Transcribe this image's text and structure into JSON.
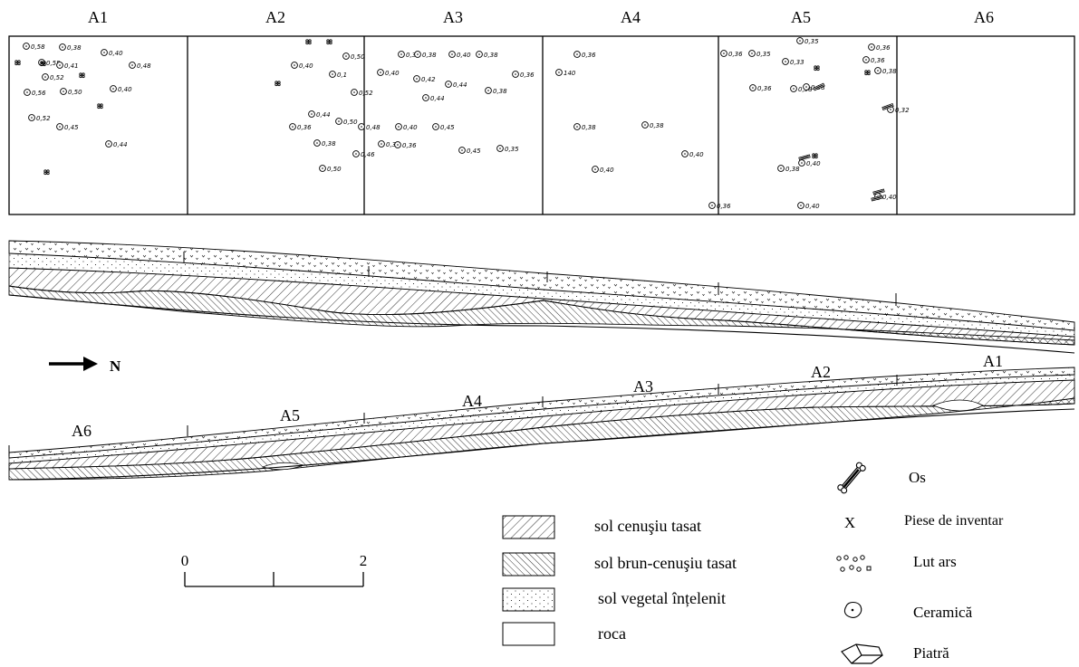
{
  "plan": {
    "squares": [
      "A1",
      "A2",
      "A3",
      "A4",
      "A5",
      "A6"
    ],
    "depths": {
      "A1": [
        "0,58",
        "0,38",
        "0,40",
        "0,55",
        "0,41",
        "0,48",
        "0,52",
        "0,40",
        "0,56",
        "0,50",
        "0,52",
        "0,45",
        "0,44"
      ],
      "A2": [
        "0,40",
        "0,1",
        "0,50",
        "0,52",
        "0,44",
        "0,36",
        "0,50",
        "0,48",
        "0,38",
        "0,46",
        "0,50"
      ],
      "A3": [
        "0,38",
        "0,38",
        "0,40",
        "0,38",
        "0,40",
        "0,42",
        "0,44",
        "0,36",
        "0,44",
        "0,38",
        "0,40",
        "0,45",
        "0,38",
        "0,36",
        "0,45",
        "0,35"
      ],
      "A4": [
        "0,36",
        "140",
        "0,38",
        "0,38",
        "0,40",
        "0,40",
        "0,36"
      ],
      "A5": [
        "0,35",
        "0,36",
        "0,36",
        "0,35",
        "0,33",
        "0,36",
        "0,36",
        "0,38",
        "0,38",
        "0,38",
        "0,32",
        "0,40",
        "0,38",
        "0,40",
        "0,40"
      ]
    }
  },
  "section": {
    "north_label": "N",
    "lower_square_labels": [
      "A6",
      "A5",
      "A4",
      "A3",
      "A2",
      "A1"
    ]
  },
  "scale": {
    "start": "0",
    "end": "2"
  },
  "legend_layers": [
    {
      "label": "sol cenuşiu tasat",
      "pattern": "hatch-fine"
    },
    {
      "label": "sol brun-cenuşiu tasat",
      "pattern": "hatch-dense"
    },
    {
      "label": "sol vegetal înțelenit",
      "pattern": "dots"
    },
    {
      "label": "roca",
      "pattern": "blank"
    }
  ],
  "legend_finds": [
    {
      "label": "Os",
      "icon": "bone-icon"
    },
    {
      "label": "Piese de inventar",
      "icon": "x-mark-icon",
      "glyph": "X"
    },
    {
      "label": "Lut ars",
      "icon": "burnt-clay-icon"
    },
    {
      "label": "Ceramică",
      "icon": "ceramic-icon"
    },
    {
      "label": "Piatră",
      "icon": "stone-icon"
    }
  ],
  "colors": {
    "ink": "#000000",
    "paper": "#ffffff"
  }
}
